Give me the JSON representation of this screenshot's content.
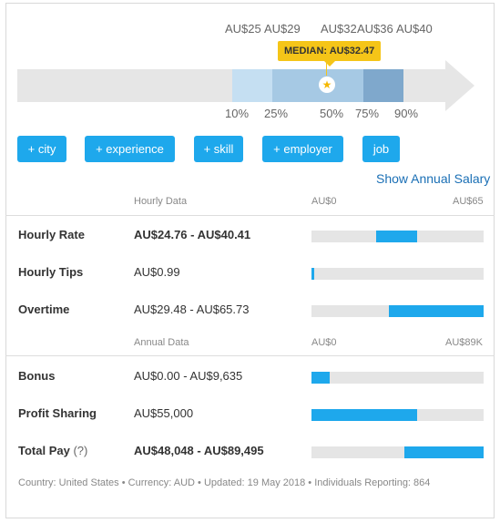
{
  "range": {
    "top_labels": [
      "AU$25",
      "AU$29",
      "AU$32",
      "AU$36",
      "AU$40"
    ],
    "median_label": "MEDIAN: AU$32.47",
    "median_star": "★",
    "percentiles": [
      "10%",
      "25%",
      "50%",
      "75%",
      "90%"
    ]
  },
  "filters": [
    "+ city",
    "+ experience",
    "+ skill",
    "+ employer",
    "job"
  ],
  "show_annual": "Show Annual Salary",
  "hourly": {
    "header": "Hourly Data",
    "scale_min": "AU$0",
    "scale_max": "AU$65",
    "rows": [
      {
        "label": "Hourly Rate",
        "value": "AU$24.76 - AU$40.41",
        "bar_start": 0.377,
        "bar_end": 0.614
      },
      {
        "label": "Hourly Tips",
        "value": "AU$0.99",
        "bar_start": 0.0,
        "bar_end": 0.012
      },
      {
        "label": "Overtime",
        "value": "AU$29.48 - AU$65.73",
        "bar_start": 0.45,
        "bar_end": 1.0
      }
    ]
  },
  "annual": {
    "header": "Annual Data",
    "scale_min": "AU$0",
    "scale_max": "AU$89K",
    "rows": [
      {
        "label": "Bonus",
        "help": "",
        "value": "AU$0.00 - AU$9,635",
        "bar_start": 0.0,
        "bar_end": 0.108
      },
      {
        "label": "Profit Sharing",
        "help": "",
        "value": "AU$55,000",
        "bar_start": 0.0,
        "bar_end": 0.614
      },
      {
        "label": "Total Pay",
        "help": "(?)",
        "value": "AU$48,048 - AU$89,495",
        "bar_start": 0.54,
        "bar_end": 1.0
      }
    ]
  },
  "footer": "Country: United States • Currency: AUD • Updated: 19 May 2018 • Individuals Reporting: 864",
  "colors": {
    "accent": "#1ea8ec",
    "median": "#f5c518",
    "link": "#1a6fb5"
  }
}
